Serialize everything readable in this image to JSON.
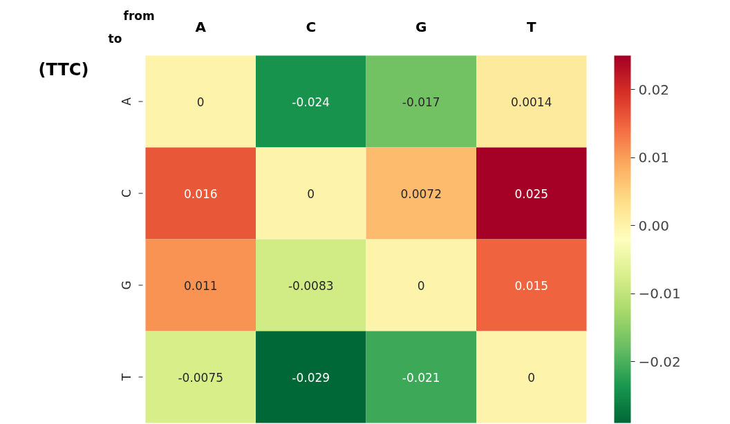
{
  "chart_data": {
    "type": "heatmap",
    "title": "(TTC)",
    "xlabel": "from",
    "ylabel": "to",
    "categories": [
      "A",
      "C",
      "G",
      "T"
    ],
    "y_categories": [
      "A",
      "C",
      "G",
      "T"
    ],
    "cells": [
      [
        0,
        -0.024,
        -0.017,
        0.0014
      ],
      [
        0.016,
        0,
        0.0072,
        0.025
      ],
      [
        0.011,
        -0.0083,
        0,
        0.015
      ],
      [
        -0.0075,
        -0.029,
        -0.021,
        0
      ]
    ],
    "data_labels": true,
    "clim": [
      -0.029,
      0.025
    ],
    "cticks": [
      0.02,
      0.01,
      {
        "value": 0,
        "label": "0.00"
      },
      {
        "value": -0.01,
        "label": "−0.01"
      },
      {
        "value": -0.02,
        "label": "−0.02"
      }
    ]
  }
}
